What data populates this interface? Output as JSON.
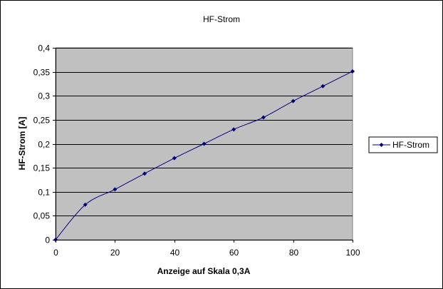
{
  "chart_data": {
    "type": "line",
    "title": "HF-Strom",
    "xlabel": "Anzeige auf Skala 0,3A",
    "ylabel": "HF-Strom [A]",
    "x": [
      0,
      10,
      20,
      30,
      40,
      50,
      60,
      70,
      80,
      90,
      100
    ],
    "series": [
      {
        "name": "HF-Strom",
        "values": [
          0,
          0.073,
          0.105,
          0.138,
          0.17,
          0.2,
          0.23,
          0.255,
          0.289,
          0.32,
          0.351
        ]
      }
    ],
    "xlim": [
      0,
      100
    ],
    "ylim": [
      0,
      0.4
    ],
    "x_ticks": [
      0,
      20,
      40,
      60,
      80,
      100
    ],
    "x_tick_labels": [
      "0",
      "20",
      "40",
      "60",
      "80",
      "100"
    ],
    "y_ticks": [
      0,
      0.05,
      0.1,
      0.15,
      0.2,
      0.25,
      0.3,
      0.35,
      0.4
    ],
    "y_tick_labels": [
      "0",
      "0,05",
      "0,1",
      "0,15",
      "0,2",
      "0,25",
      "0,3",
      "0,35",
      "0,4"
    ],
    "grid": "horizontal",
    "legend": "right",
    "colors": {
      "plot_background": "#c0c0c0",
      "series": "#000080",
      "gridline": "#000000"
    }
  }
}
